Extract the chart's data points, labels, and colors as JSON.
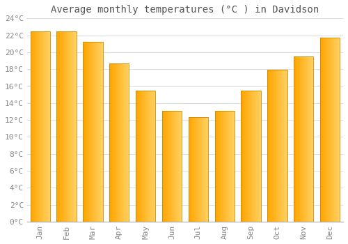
{
  "title": "Average monthly temperatures (°C ) in Davidson",
  "months": [
    "Jan",
    "Feb",
    "Mar",
    "Apr",
    "May",
    "Jun",
    "Jul",
    "Aug",
    "Sep",
    "Oct",
    "Nov",
    "Dec"
  ],
  "values": [
    22.5,
    22.5,
    21.2,
    18.7,
    15.5,
    13.1,
    12.3,
    13.1,
    15.5,
    17.9,
    19.5,
    21.7
  ],
  "bar_color_left": "#FFA500",
  "bar_color_right": "#FFD060",
  "bar_edge_color": "#CC8800",
  "background_color": "#FFFFFF",
  "grid_color": "#DDDDDD",
  "title_fontsize": 10,
  "tick_fontsize": 8,
  "tick_color": "#888888",
  "ylim": [
    0,
    24
  ],
  "ytick_step": 2
}
